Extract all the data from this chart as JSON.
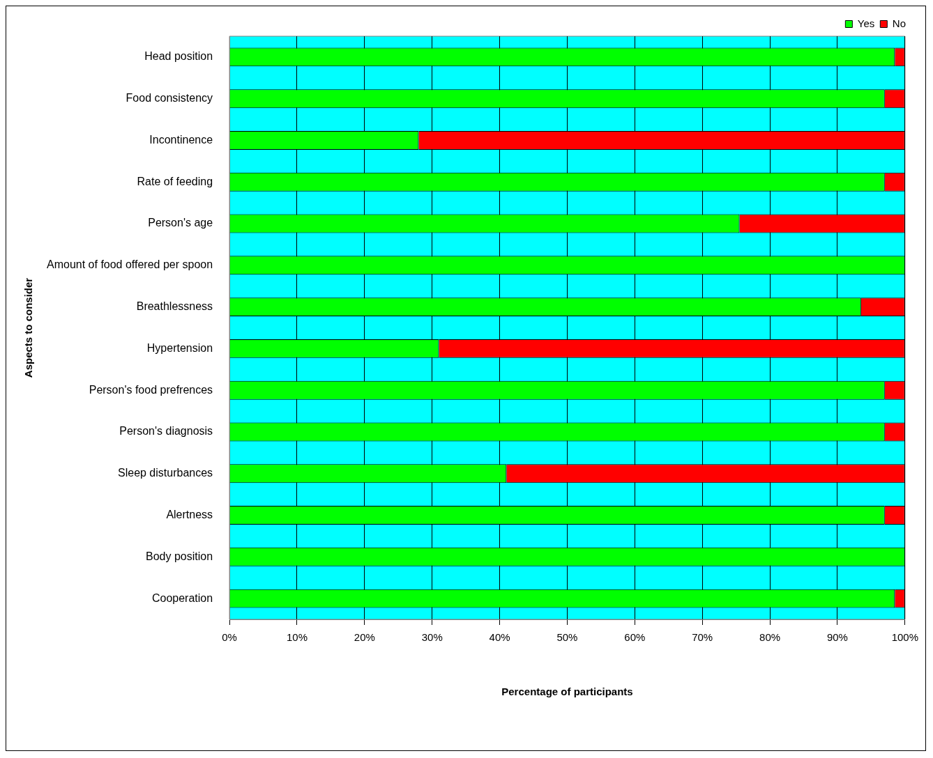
{
  "chart_data": {
    "type": "bar",
    "orientation": "horizontal",
    "stacked": true,
    "xlabel": "Percentage of participants",
    "ylabel": "Aspects to consider",
    "categories": [
      "Head position",
      "Food consistency",
      "Incontinence",
      "Rate of feeding",
      "Person's age",
      "Amount of food offered per spoon",
      "Breathlessness",
      "Hypertension",
      "Person's food prefrences",
      "Person's diagnosis",
      "Sleep disturbances",
      "Alertness",
      "Body position",
      "Cooperation"
    ],
    "series": [
      {
        "name": "Yes",
        "color": "#00ff00",
        "values": [
          98.5,
          97,
          28,
          97,
          75.5,
          100,
          93.5,
          31,
          97,
          97,
          41,
          97,
          100,
          98.5
        ]
      },
      {
        "name": "No",
        "color": "#ff0000",
        "values": [
          1.5,
          3,
          72,
          3,
          24.5,
          0,
          6.5,
          69,
          3,
          3,
          59,
          3,
          0,
          1.5
        ]
      }
    ],
    "xlim": [
      0,
      100
    ],
    "xticks": [
      {
        "value": 0,
        "label": "0%"
      },
      {
        "value": 10,
        "label": "10%"
      },
      {
        "value": 20,
        "label": "20%"
      },
      {
        "value": 30,
        "label": "30%"
      },
      {
        "value": 40,
        "label": "40%"
      },
      {
        "value": 50,
        "label": "50%"
      },
      {
        "value": 60,
        "label": "60%"
      },
      {
        "value": 70,
        "label": "70%"
      },
      {
        "value": 80,
        "label": "80%"
      },
      {
        "value": 90,
        "label": "90%"
      },
      {
        "value": 100,
        "label": "100%"
      }
    ],
    "grid": "x",
    "legend": "top right"
  }
}
